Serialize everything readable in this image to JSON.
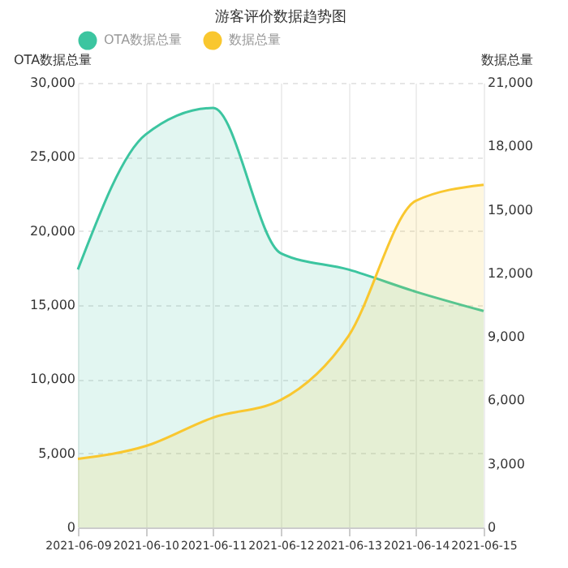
{
  "chart_data": {
    "type": "area",
    "title": "游客评价数据趋势图",
    "ylabel": "OTA数据总量",
    "y2label": "数据总量",
    "categories": [
      "2021-06-09",
      "2021-06-10",
      "2021-06-11",
      "2021-06-12",
      "2021-06-13",
      "2021-06-14",
      "2021-06-15"
    ],
    "series": [
      {
        "name": "OTA数据总量",
        "color": "#3cc5a0",
        "values": [
          17400,
          26500,
          28300,
          18500,
          17400,
          15900,
          14600
        ]
      },
      {
        "name": "数据总量",
        "color": "#f9c72f",
        "axis": "y2",
        "values": [
          3240,
          3840,
          5190,
          6020,
          9030,
          15430,
          16180
        ]
      }
    ],
    "ylim": [
      0,
      30000
    ],
    "yticks": [
      0,
      {
        "value": 5000,
        "label": "5,000"
      },
      {
        "value": 10000,
        "label": "10,000"
      },
      {
        "value": 15000,
        "label": "15,000"
      },
      {
        "value": 20000,
        "label": "20,000"
      },
      {
        "value": 25000,
        "label": "25,000"
      },
      {
        "value": 30000,
        "label": "30,000"
      }
    ],
    "y2lim": [
      0,
      21000
    ],
    "y2ticks": [
      0,
      {
        "value": 3000,
        "label": "3,000"
      },
      {
        "value": 6000,
        "label": "6,000"
      },
      {
        "value": 9000,
        "label": "9,000"
      },
      {
        "value": 12000,
        "label": "12,000"
      },
      {
        "value": 15000,
        "label": "15,000"
      },
      {
        "value": 18000,
        "label": "18,000"
      },
      {
        "value": 21000,
        "label": "21,000"
      }
    ],
    "grid": true,
    "legend": "top",
    "marker": "none",
    "line_style": "solid"
  }
}
